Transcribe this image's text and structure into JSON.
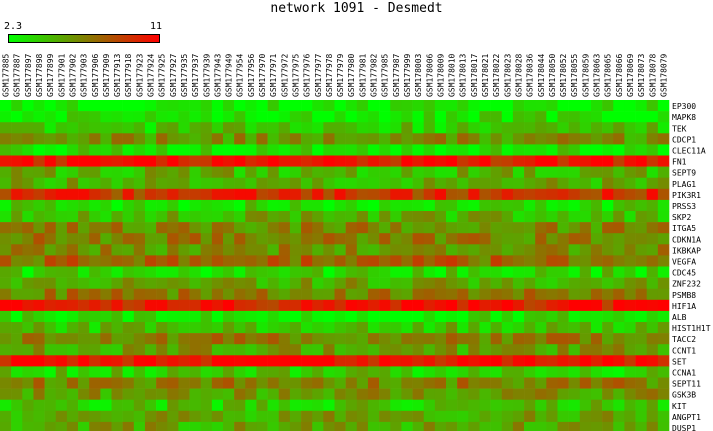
{
  "chart_data": {
    "type": "heatmap",
    "title": "network 1091 - Desmedt",
    "colorscale": {
      "min": 2.3,
      "max": 11,
      "min_label": "2.3",
      "max_label": "11",
      "low_color": "#00ff00",
      "mid_color": "#808000",
      "high_color": "#ff0000"
    },
    "columns": [
      "GSM177885",
      "GSM177887",
      "GSM177897",
      "GSM177898",
      "GSM177899",
      "GSM177901",
      "GSM177902",
      "GSM177903",
      "GSM177906",
      "GSM177909",
      "GSM177913",
      "GSM177918",
      "GSM177923",
      "GSM177924",
      "GSM177925",
      "GSM177927",
      "GSM177935",
      "GSM177937",
      "GSM177939",
      "GSM177943",
      "GSM177949",
      "GSM177954",
      "GSM177956",
      "GSM177970",
      "GSM177971",
      "GSM177972",
      "GSM177975",
      "GSM177976",
      "GSM177977",
      "GSM177978",
      "GSM177979",
      "GSM177980",
      "GSM177981",
      "GSM177982",
      "GSM177985",
      "GSM177987",
      "GSM177999",
      "GSM178003",
      "GSM178006",
      "GSM178009",
      "GSM178010",
      "GSM178013",
      "GSM178017",
      "GSM178021",
      "GSM178022",
      "GSM178023",
      "GSM178028",
      "GSM178036",
      "GSM178044",
      "GSM178050",
      "GSM178052",
      "GSM178055",
      "GSM178059",
      "GSM178063",
      "GSM178065",
      "GSM178066",
      "GSM178069",
      "GSM178073",
      "GSM178078",
      "GSM178079"
    ],
    "rows": [
      "EP300",
      "MAPK8",
      "TEK",
      "CDCP1",
      "CLEC11A",
      "FN1",
      "SEPT9",
      "PLAG1",
      "PIK3R1",
      "PRSS3",
      "SKP2",
      "ITGA5",
      "CDKN1A",
      "IKBKAP",
      "VEGFA",
      "CDC45",
      "ZNF232",
      "PSMB8",
      "HIF1A",
      "ALB",
      "HIST1H1T",
      "TACC2",
      "CCNT1",
      "SET",
      "CCNA1",
      "SEPT11",
      "GSK3B",
      "KIT",
      "ANGPT1",
      "DUSP1"
    ],
    "row_levels": [
      0.05,
      0.12,
      0.22,
      0.42,
      0.12,
      0.92,
      0.3,
      0.32,
      0.8,
      0.15,
      0.3,
      0.48,
      0.5,
      0.45,
      0.6,
      0.18,
      0.35,
      0.52,
      0.9,
      0.12,
      0.25,
      0.5,
      0.38,
      0.96,
      0.2,
      0.5,
      0.4,
      0.22,
      0.35,
      0.35
    ]
  }
}
